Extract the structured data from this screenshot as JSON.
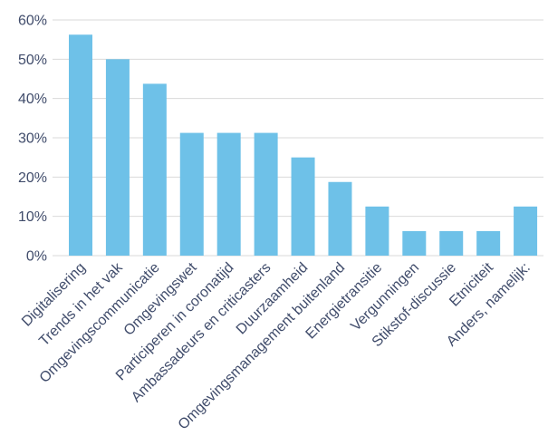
{
  "chart_data": {
    "type": "bar",
    "categories": [
      "Digitalisering",
      "Trends in het vak",
      "Omgevingscommunicatie",
      "Omgevingswet",
      "Participeren in coronatijd",
      "Ambassadeurs en criticasters",
      "Duurzaamheid",
      "Omgevingsmanagement buitenland",
      "Energietransitie",
      "Vergunningen",
      "Stikstof-discussie",
      "Etniciteit",
      "Anders, namelijk:"
    ],
    "values": [
      56.25,
      50,
      43.75,
      31.25,
      31.25,
      31.25,
      25,
      18.75,
      12.5,
      6.25,
      6.25,
      6.25,
      12.5
    ],
    "y_ticks": [
      "0%",
      "10%",
      "20%",
      "30%",
      "40%",
      "50%",
      "60%"
    ],
    "ylim": [
      0,
      60
    ],
    "grid": true,
    "bar_color": "#6ec1e8",
    "grid_color": "#d9d9d9",
    "label_color": "#404c6b"
  }
}
